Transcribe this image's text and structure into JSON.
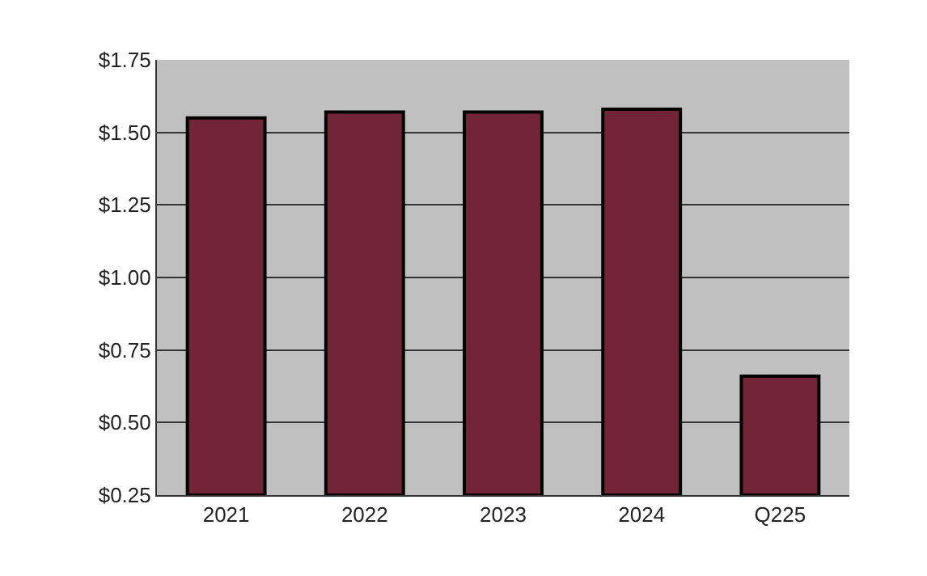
{
  "chart_data": {
    "type": "bar",
    "categories": [
      "2021",
      "2022",
      "2023",
      "2024",
      "Q225"
    ],
    "values": [
      1.55,
      1.57,
      1.57,
      1.58,
      0.66
    ],
    "color": "#722439",
    "ylim": [
      0.25,
      1.75
    ],
    "yticks": [
      {
        "value": 0.25,
        "label": "$0.25"
      },
      {
        "value": 0.5,
        "label": "$0.50"
      },
      {
        "value": 0.75,
        "label": "$0.75"
      },
      {
        "value": 1.0,
        "label": "$1.00"
      },
      {
        "value": 1.25,
        "label": "$1.25"
      },
      {
        "value": 1.5,
        "label": "$1.50"
      },
      {
        "value": 1.75,
        "label": "$1.75"
      }
    ],
    "grid": "y"
  }
}
